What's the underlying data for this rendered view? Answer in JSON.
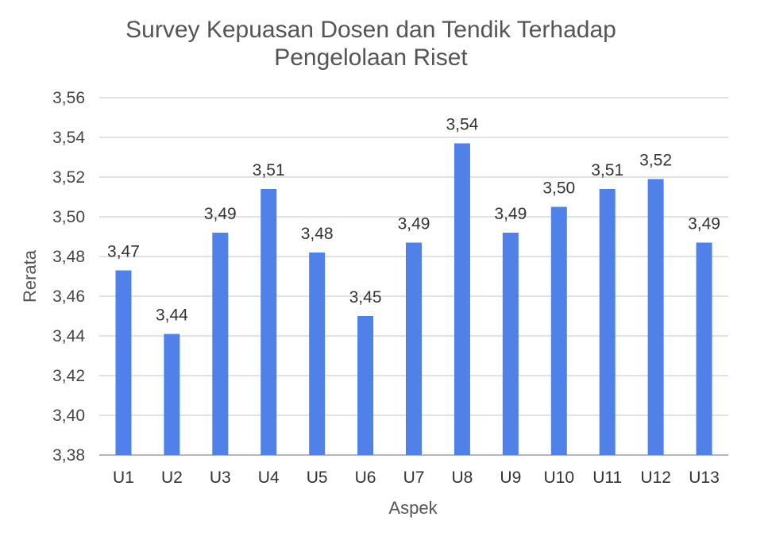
{
  "chart_data": {
    "type": "bar",
    "title_lines": [
      "Survey Kepuasan Dosen dan Tendik Terhadap",
      "Pengelolaan Riset"
    ],
    "xlabel": "Aspek",
    "ylabel": "Rerata",
    "categories": [
      "U1",
      "U2",
      "U3",
      "U4",
      "U5",
      "U6",
      "U7",
      "U8",
      "U9",
      "U10",
      "U11",
      "U12",
      "U13"
    ],
    "values": [
      3.473,
      3.441,
      3.492,
      3.514,
      3.482,
      3.45,
      3.487,
      3.537,
      3.492,
      3.505,
      3.514,
      3.519,
      3.487
    ],
    "data_labels": [
      "3,47",
      "3,44",
      "3,49",
      "3,51",
      "3,48",
      "3,45",
      "3,49",
      "3,54",
      "3,49",
      "3,50",
      "3,51",
      "3,52",
      "3,49"
    ],
    "ylim": [
      3.38,
      3.56
    ],
    "y_ticks": [
      3.38,
      3.4,
      3.42,
      3.44,
      3.46,
      3.48,
      3.5,
      3.52,
      3.54,
      3.56
    ],
    "y_tick_labels": [
      "3,38",
      "3,40",
      "3,42",
      "3,44",
      "3,46",
      "3,48",
      "3,50",
      "3,52",
      "3,54",
      "3,56"
    ],
    "grid": true,
    "legend": "none",
    "bar_color": "#4f81e8"
  }
}
